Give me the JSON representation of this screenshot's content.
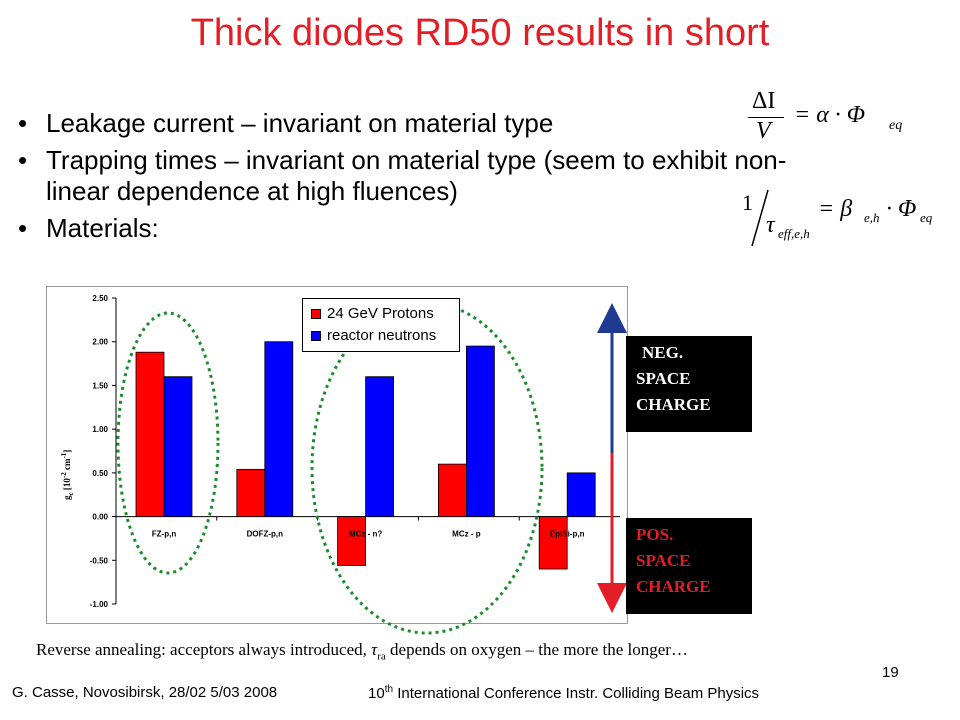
{
  "title": "Thick diodes RD50 results in short",
  "bullets": [
    "Leakage current – invariant on material type",
    "Trapping times – invariant on material type (seem to exhibit non-linear dependence at high fluences)",
    "Materials:"
  ],
  "bullet_glyph": "•",
  "formula1": {
    "numerator": "ΔI",
    "denominator": "V",
    "rhs": "= α · Φ",
    "sub": "eq"
  },
  "formula2": {
    "numerator": "1",
    "denominator_main": "τ",
    "denominator_sub": "eff,e,h",
    "rhs_main": "= β",
    "rhs_sub1": "e,h",
    "rhs_mid": " · Φ",
    "rhs_sub2": "eq"
  },
  "chart_data": {
    "type": "bar",
    "categories": [
      "FZ-p,n",
      "DOFZ-p,n",
      "MCz - n?",
      "MCz - p",
      "EpiSi-p,n"
    ],
    "series": [
      {
        "name": "24 GeV Protons",
        "color": "#ff0000",
        "values": [
          1.88,
          0.54,
          -0.56,
          0.6,
          -0.6
        ]
      },
      {
        "name": "reactor neutrons",
        "color": "#0000ff",
        "values": [
          1.6,
          2.0,
          1.6,
          1.95,
          0.5
        ]
      }
    ],
    "ylim": [
      -1.0,
      2.5
    ],
    "yticks": [
      "2.50",
      "2.00",
      "1.50",
      "1.00",
      "0.50",
      "0.00",
      "-0.50",
      "-1.00"
    ],
    "ylabel_main": "g",
    "ylabel_sub": "c",
    "ylabel_rest": " [10",
    "ylabel_sup1": "-2",
    "ylabel_mid": " cm",
    "ylabel_sup2": "-1",
    "ylabel_end": "]",
    "grid": false,
    "legend_position": "top-center"
  },
  "charge_labels": {
    "neg": [
      "NEG.",
      "SPACE",
      "CHARGE"
    ],
    "pos": [
      "POS.",
      "SPACE",
      "CHARGE"
    ]
  },
  "note": {
    "before": "Reverse annealing: acceptors always introduced, ",
    "tau": "τ",
    "tau_sub": "ra",
    "after": " depends on oxygen – the more the longer…"
  },
  "footer": {
    "left": "G. Casse, Novosibirsk, 28/02 5/03 2008",
    "mid_prefix": "10",
    "mid_sup": "th",
    "mid_rest": " International Conference Instr. Colliding Beam Physics",
    "page": "19"
  },
  "colors": {
    "title": "#e41e26",
    "ellipse": "#1e8b2e",
    "arrow_up": "#1f3a93",
    "arrow_down": "#e41e26"
  }
}
